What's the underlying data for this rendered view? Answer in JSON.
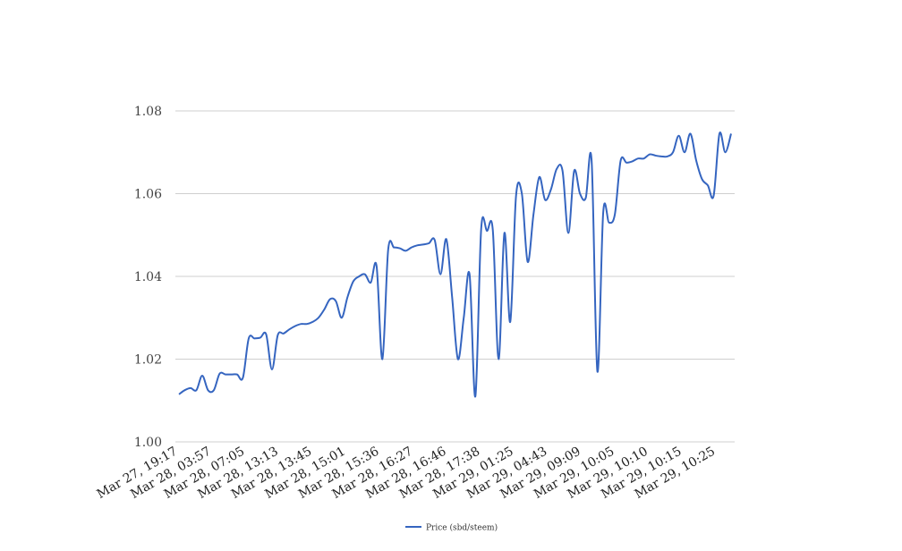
{
  "chart_data": {
    "type": "line",
    "title": "",
    "xlabel": "",
    "ylabel": "",
    "ylim": [
      1.0,
      1.08
    ],
    "yticks": [
      1.0,
      1.02,
      1.04,
      1.06,
      1.08
    ],
    "ytick_labels": [
      "1.00",
      "1.02",
      "1.04",
      "1.06",
      "1.08"
    ],
    "xtick_labels": [
      "Mar 27, 19:17",
      "Mar 28, 03:57",
      "Mar 28, 07:05",
      "Mar 28, 13:13",
      "Mar 28, 13:45",
      "Mar 28, 15:01",
      "Mar 28, 15:36",
      "Mar 28, 16:27",
      "Mar 28, 16:46",
      "Mar 28, 17:38",
      "Mar 29, 01:25",
      "Mar 29, 04:43",
      "Mar 29, 09:09",
      "Mar 29, 10:05",
      "Mar 29, 10:10",
      "Mar 29, 10:15",
      "Mar 29, 10:25"
    ],
    "grid": "horizontal",
    "legend": "bottom-center",
    "colors": {
      "series": "#3565c0",
      "grid": "#cfcfcf"
    },
    "series": [
      {
        "name": "Price (sbd/steem)",
        "values": [
          1.0115,
          1.0125,
          1.013,
          1.0125,
          1.016,
          1.0125,
          1.0125,
          1.0165,
          1.0163,
          1.0163,
          1.0163,
          1.0155,
          1.025,
          1.025,
          1.0252,
          1.026,
          1.0175,
          1.0258,
          1.0262,
          1.0272,
          1.028,
          1.0285,
          1.0285,
          1.029,
          1.03,
          1.032,
          1.0345,
          1.034,
          1.03,
          1.035,
          1.0388,
          1.04,
          1.0405,
          1.0385,
          1.0425,
          1.02,
          1.0465,
          1.047,
          1.0468,
          1.0462,
          1.047,
          1.0475,
          1.0477,
          1.048,
          1.0488,
          1.0405,
          1.049,
          1.035,
          1.02,
          1.03,
          1.0405,
          1.011,
          1.0515,
          1.051,
          1.0512,
          1.02,
          1.0505,
          1.029,
          1.0595,
          1.06,
          1.0435,
          1.055,
          1.064,
          1.0585,
          1.061,
          1.066,
          1.0655,
          1.0505,
          1.0655,
          1.06,
          1.059,
          1.068,
          1.017,
          1.0555,
          1.053,
          1.055,
          1.068,
          1.0675,
          1.0678,
          1.0685,
          1.0685,
          1.0695,
          1.0692,
          1.069,
          1.069,
          1.07,
          1.074,
          1.07,
          1.0745,
          1.068,
          1.0635,
          1.062,
          1.0595,
          1.0745,
          1.07,
          1.0745
        ]
      }
    ]
  }
}
